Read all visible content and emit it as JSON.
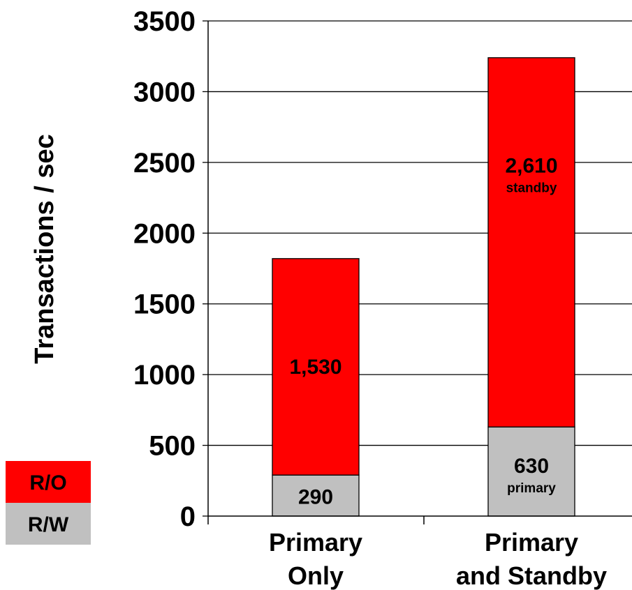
{
  "chart_data": {
    "type": "bar",
    "stacked": true,
    "categories": [
      [
        "Primary",
        "Only"
      ],
      [
        "Primary",
        "and Standby"
      ]
    ],
    "series": [
      {
        "name": "R/W",
        "color": "#c0c0c0",
        "values": [
          290,
          630
        ],
        "labels": [
          "290",
          "630"
        ],
        "sublabels": [
          "",
          "primary"
        ]
      },
      {
        "name": "R/O",
        "color": "#ff0000",
        "values": [
          1530,
          2610
        ],
        "labels": [
          "1,530",
          "2,610"
        ],
        "sublabels": [
          "",
          "standby"
        ]
      }
    ],
    "title": "",
    "xlabel": "",
    "ylabel": "Transactions / sec",
    "ylim": [
      0,
      3500
    ],
    "yticks": [
      0,
      500,
      1000,
      1500,
      2000,
      2500,
      3000,
      3500
    ],
    "grid": true,
    "legend_position": "bottom-left",
    "legend_order": [
      "R/O",
      "R/W"
    ]
  }
}
